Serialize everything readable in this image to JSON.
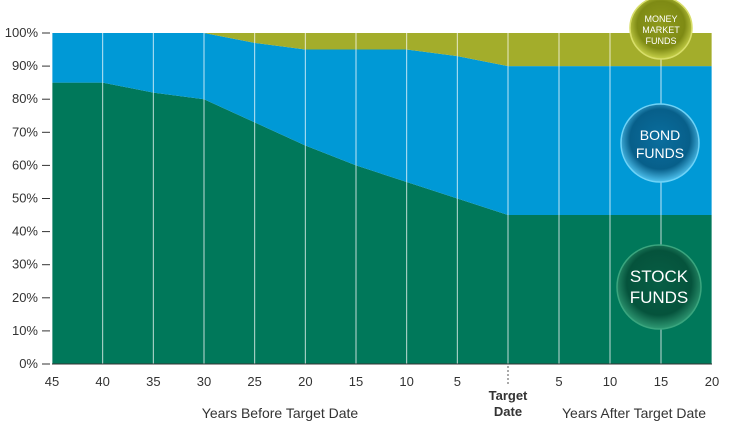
{
  "chart_data": {
    "type": "area",
    "stacked": true,
    "x_before": [
      45,
      40,
      35,
      30,
      25,
      20,
      15,
      10,
      5,
      0
    ],
    "x_after": [
      0,
      5,
      10,
      15,
      20
    ],
    "series": [
      {
        "name": "STOCK FUNDS",
        "color": "#00785a",
        "before": [
          85,
          85,
          82,
          80,
          73,
          66,
          60,
          55,
          50,
          45
        ],
        "after": [
          45,
          45,
          45,
          45,
          45
        ]
      },
      {
        "name": "BOND FUNDS",
        "color": "#0099d6",
        "before": [
          15,
          15,
          18,
          20,
          24,
          29,
          35,
          40,
          43,
          45
        ],
        "after": [
          45,
          45,
          45,
          45,
          45
        ]
      },
      {
        "name": "MONEY MARKET FUNDS",
        "color": "#a3ad2b",
        "before": [
          0,
          0,
          0,
          0,
          3,
          5,
          5,
          5,
          7,
          10
        ],
        "after": [
          10,
          10,
          10,
          10,
          10
        ]
      }
    ],
    "y_ticks": [
      "0%",
      "10%",
      "20%",
      "30%",
      "40%",
      "50%",
      "60%",
      "70%",
      "80%",
      "90%",
      "100%"
    ],
    "x_ticks_before": [
      "45",
      "40",
      "35",
      "30",
      "25",
      "20",
      "15",
      "10",
      "5"
    ],
    "x_ticks_after": [
      "5",
      "10",
      "15",
      "20"
    ],
    "target_label_line1": "Target",
    "target_label_line2": "Date",
    "xlabel_before": "Years Before Target Date",
    "xlabel_after": "Years After Target Date",
    "ylim": [
      0,
      100
    ],
    "grid": "vertical"
  },
  "badges": {
    "money_market": [
      "MONEY",
      "MARKET",
      "FUNDS"
    ],
    "bond": [
      "BOND",
      "FUNDS"
    ],
    "stock": [
      "STOCK",
      "FUNDS"
    ]
  }
}
